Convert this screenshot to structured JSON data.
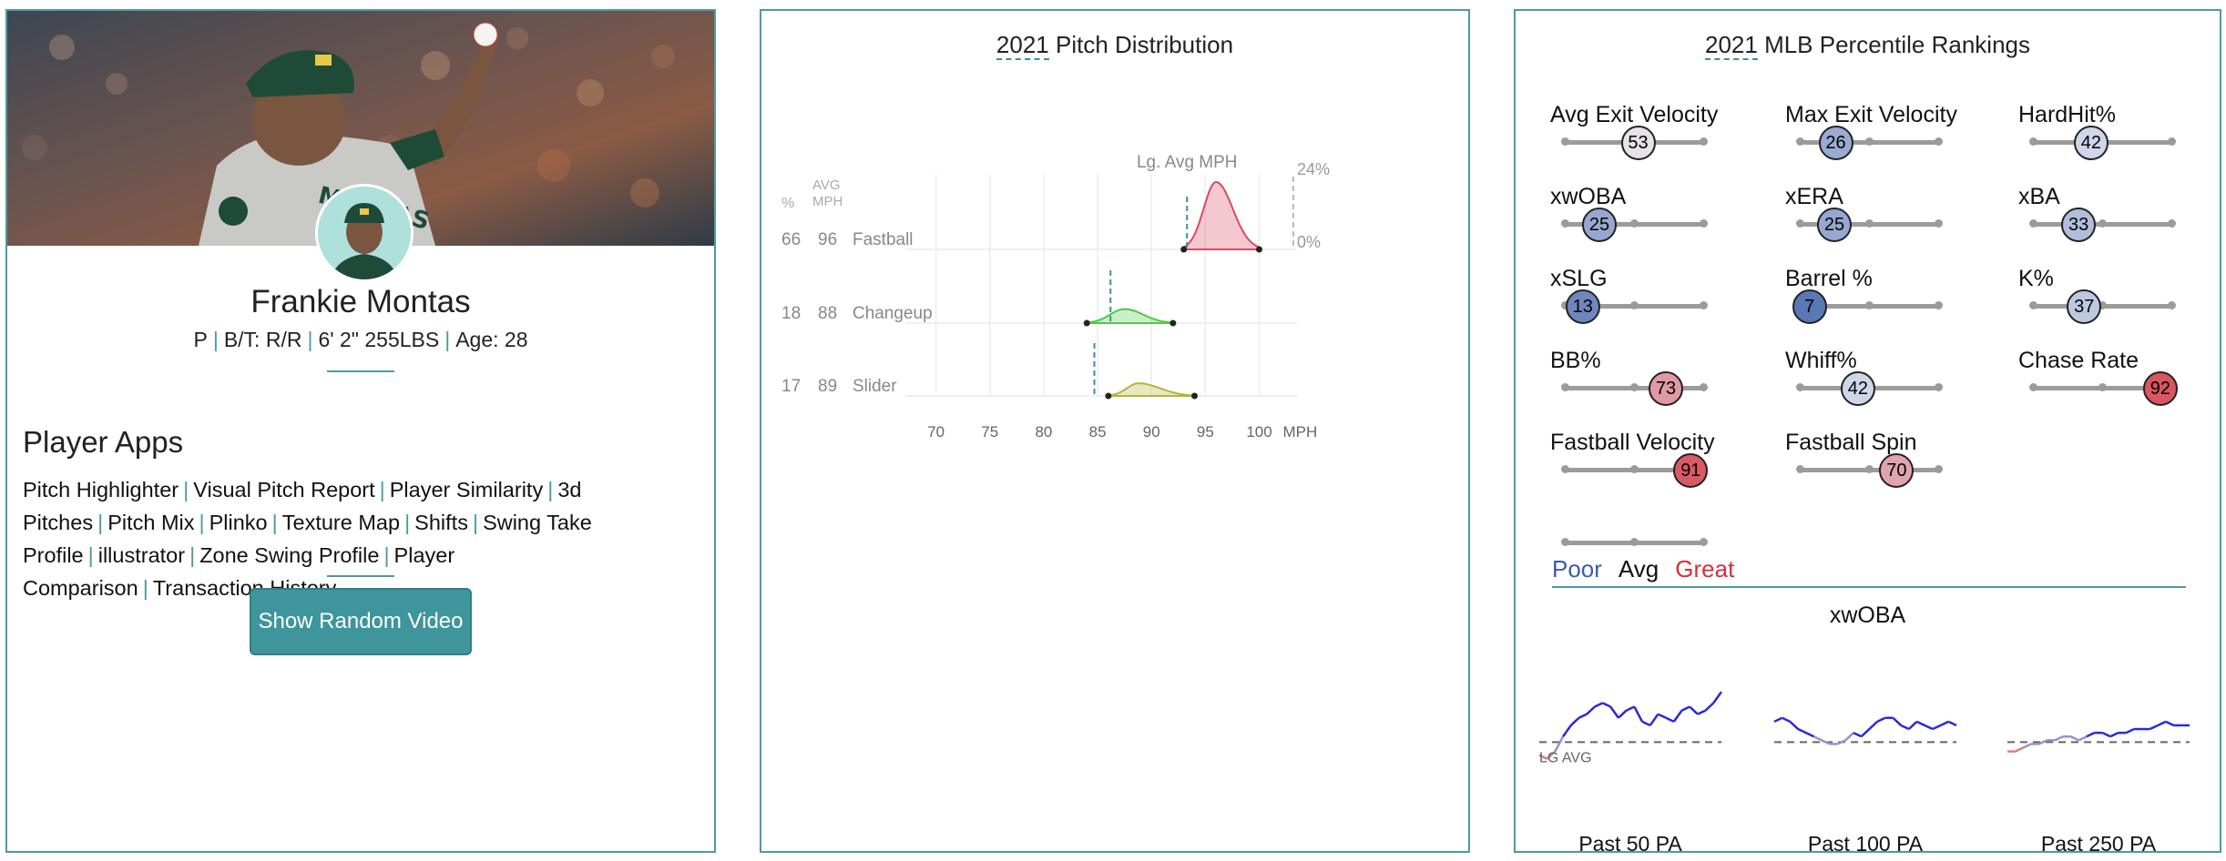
{
  "player": {
    "name": "Frankie Montas",
    "position": "P",
    "bats_throws": "B/T: R/R",
    "height_weight": "6' 2\" 255LBS",
    "age": "Age: 28"
  },
  "apps": {
    "title": "Player Apps",
    "links": [
      "Pitch Highlighter",
      "Visual Pitch Report",
      "Player Similarity",
      "3d Pitches",
      "Pitch Mix",
      "Plinko",
      "Texture Map",
      "Shifts",
      "Swing Take Profile",
      "illustrator",
      "Zone Swing Profile",
      "Player Comparison",
      "Transaction History"
    ],
    "random_video_label": "Show Random Video"
  },
  "pitch_dist": {
    "title_year": "2021",
    "title_rest": " Pitch Distribution",
    "col_pct": "%",
    "col_avg": "AVG",
    "col_mph": "MPH",
    "lg_avg_label": "Lg. Avg MPH",
    "scale_top": "24%",
    "scale_zero": "0%",
    "x_unit": "MPH",
    "colors": {
      "Fastball": "#d94a64",
      "Changeup": "#4fc94a",
      "Slider": "#b5b43a",
      "lgavg": "#3b8fa0"
    }
  },
  "chart_data": {
    "type": "area",
    "x_ticks": [
      70,
      75,
      80,
      85,
      90,
      95,
      100
    ],
    "xlim": [
      68,
      103
    ],
    "pitches": [
      {
        "name": "Fastball",
        "pct": 66,
        "avg_mph": 96,
        "lg_avg_mph": 93.3,
        "range": [
          93.0,
          100.0
        ],
        "peak": 96,
        "peak_pct": 24
      },
      {
        "name": "Changeup",
        "pct": 18,
        "avg_mph": 88,
        "lg_avg_mph": 86.2,
        "range": [
          84.0,
          92.0
        ],
        "peak": 87.5,
        "peak_pct": 5
      },
      {
        "name": "Slider",
        "pct": 17,
        "avg_mph": 89,
        "lg_avg_mph": 84.7,
        "range": [
          86.0,
          94.0
        ],
        "peak": 88.8,
        "peak_pct": 4.5
      }
    ]
  },
  "percentiles": {
    "title_year": "2021",
    "title_rest": " MLB Percentile Rankings",
    "metrics": [
      {
        "label": "Avg Exit Velocity",
        "value": 53
      },
      {
        "label": "Max Exit Velocity",
        "value": 26
      },
      {
        "label": "HardHit%",
        "value": 42
      },
      {
        "label": "xwOBA",
        "value": 25
      },
      {
        "label": "xERA",
        "value": 25
      },
      {
        "label": "xBA",
        "value": 33
      },
      {
        "label": "xSLG",
        "value": 13
      },
      {
        "label": "Barrel %",
        "value": 7
      },
      {
        "label": "K%",
        "value": 37
      },
      {
        "label": "BB%",
        "value": 73
      },
      {
        "label": "Whiff%",
        "value": 42
      },
      {
        "label": "Chase Rate",
        "value": 92
      },
      {
        "label": "Fastball Velocity",
        "value": 91
      },
      {
        "label": "Fastball Spin",
        "value": 70
      }
    ],
    "legend": {
      "poor": "Poor",
      "avg": "Avg",
      "great": "Great",
      "poor_color": "#3a5ca8",
      "great_color": "#d4303c"
    }
  },
  "xwoba": {
    "title": "xwOBA",
    "lg_avg_label": "LG AVG",
    "windows": [
      "Past 50 PA",
      "Past 100 PA",
      "Past 250 PA"
    ],
    "series": [
      [
        0.28,
        0.27,
        0.29,
        0.33,
        0.36,
        0.38,
        0.39,
        0.41,
        0.42,
        0.41,
        0.38,
        0.4,
        0.41,
        0.37,
        0.36,
        0.39,
        0.38,
        0.37,
        0.4,
        0.41,
        0.39,
        0.4,
        0.42,
        0.45
      ],
      [
        0.37,
        0.38,
        0.37,
        0.35,
        0.34,
        0.33,
        0.32,
        0.31,
        0.31,
        0.32,
        0.34,
        0.33,
        0.35,
        0.37,
        0.38,
        0.38,
        0.36,
        0.35,
        0.37,
        0.36,
        0.35,
        0.36,
        0.37,
        0.36
      ],
      [
        0.29,
        0.29,
        0.3,
        0.31,
        0.31,
        0.32,
        0.32,
        0.33,
        0.33,
        0.32,
        0.33,
        0.34,
        0.34,
        0.33,
        0.34,
        0.34,
        0.35,
        0.35,
        0.35,
        0.36,
        0.37,
        0.36,
        0.36,
        0.36
      ]
    ],
    "lg_avg": 0.315
  }
}
